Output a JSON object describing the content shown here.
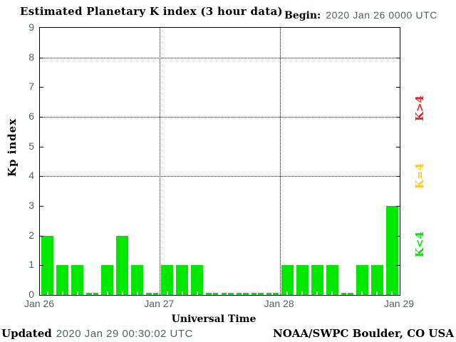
{
  "header": {
    "title": "Estimated Planetary K index (3 hour data)",
    "begin_label": "Begin:",
    "begin_value": "2020 Jan 26 0000 UTC"
  },
  "axes": {
    "y_label": "Kp index",
    "x_label": "Universal Time"
  },
  "legend": {
    "items": [
      {
        "label": "K>4",
        "color": "#ee1c1c"
      },
      {
        "label": "K=4",
        "color": "#ffcc00"
      },
      {
        "label": "K<4",
        "color": "#00e800"
      }
    ]
  },
  "footer": {
    "updated_label": "Updated",
    "updated_value": "2020 Jan 29 00:30:02 UTC",
    "credit": "NOAA/SWPC Boulder, CO USA"
  },
  "chart_data": {
    "type": "bar",
    "title": "Estimated Planetary K index (3 hour data)",
    "xlabel": "Universal Time",
    "ylabel": "Kp index",
    "begin": "2020 Jan 26 0000 UTC",
    "interval_hours": 3,
    "bars_per_day": 8,
    "x_tick_labels": [
      "Jan 26",
      "Jan 27",
      "Jan 28",
      "Jan 29"
    ],
    "y_ticks": [
      0,
      1,
      2,
      3,
      4,
      5,
      6,
      7,
      8,
      9
    ],
    "ylim": [
      0,
      9
    ],
    "grid_y_dotted_at": [
      4,
      6,
      8
    ],
    "grid_x_dotted_at_day_boundaries": [
      1,
      2
    ],
    "series": [
      {
        "day": "Jan 26",
        "values": [
          2,
          1,
          1,
          0,
          1,
          2,
          1,
          0
        ]
      },
      {
        "day": "Jan 27",
        "values": [
          1,
          1,
          1,
          0,
          0,
          0,
          0,
          0
        ]
      },
      {
        "day": "Jan 28",
        "values": [
          1,
          1,
          1,
          1,
          0,
          1,
          1,
          3
        ]
      }
    ],
    "values": [
      2,
      1,
      1,
      0,
      1,
      2,
      1,
      0,
      1,
      1,
      1,
      0,
      0,
      0,
      0,
      0,
      1,
      1,
      1,
      1,
      0,
      1,
      1,
      3
    ],
    "bar_colors": {
      "lt4": "#00e800",
      "eq4": "#ffcc00",
      "gt4": "#ee1c1c"
    },
    "legend_position": "right-outside",
    "legend_entries": [
      "K>4",
      "K=4",
      "K<4"
    ]
  }
}
